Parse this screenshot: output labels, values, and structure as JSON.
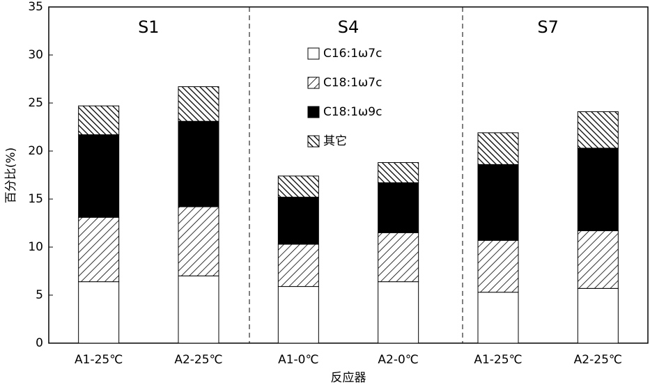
{
  "chart_data": {
    "type": "stacked_bar",
    "xlabel": "反应器",
    "ylabel": "百分比(%)",
    "categories": [
      "A1-25℃",
      "A2-25℃",
      "A1-0℃",
      "A2-0℃",
      "A1-25℃",
      "A2-25℃"
    ],
    "annotations": [
      "S1",
      "S4",
      "S7"
    ],
    "series": [
      {
        "name": "C16:1ω7c",
        "color": "#ffffff",
        "pattern": "none",
        "values": [
          6.4,
          7.0,
          5.9,
          6.4,
          5.3,
          5.7
        ]
      },
      {
        "name": "C18:1ω7c",
        "color": "#ffffff",
        "pattern": "hatch-right",
        "values": [
          6.7,
          7.2,
          4.4,
          5.1,
          5.4,
          6.0
        ]
      },
      {
        "name": "C18:1ω9c",
        "color": "#000000",
        "pattern": "none",
        "values": [
          8.6,
          8.9,
          4.9,
          5.2,
          7.9,
          8.6
        ]
      },
      {
        "name": "其它",
        "color": "#ffffff",
        "pattern": "hatch-left",
        "values": [
          3.0,
          3.6,
          2.2,
          2.1,
          3.3,
          3.8
        ]
      }
    ],
    "ylim": [
      0,
      35
    ],
    "yticks": [
      0,
      5,
      10,
      15,
      20,
      25,
      30,
      35
    ],
    "grid": false
  }
}
